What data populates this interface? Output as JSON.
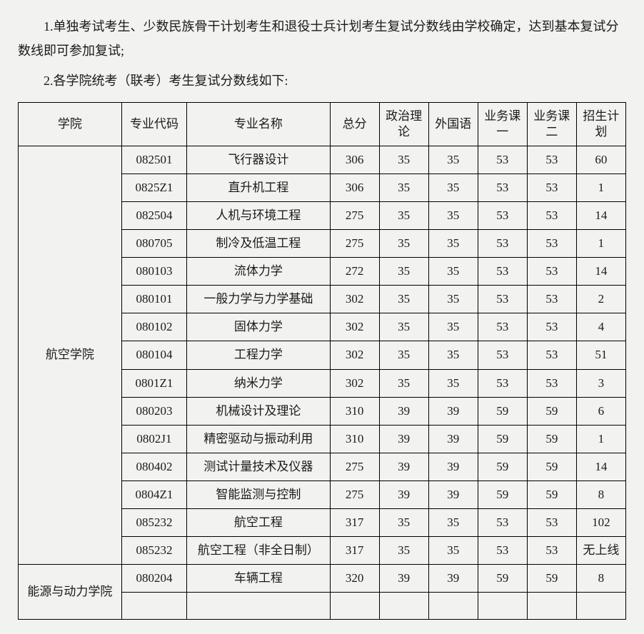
{
  "paragraphs": {
    "p1": "1.单独考试考生、少数民族骨干计划考生和退役士兵计划考生复试分数线由学校确定，达到基本复试分数线即可参加复试;",
    "p2": "2.各学院统考（联考）考生复试分数线如下:"
  },
  "table": {
    "headers": {
      "college": "学院",
      "code": "专业代码",
      "name": "专业名称",
      "total": "总分",
      "politics": "政治理论",
      "foreign": "外国语",
      "biz1": "业务课一",
      "biz2": "业务课二",
      "plan": "招生计划"
    },
    "college1": {
      "name": "航空学院",
      "rows": [
        {
          "code": "082501",
          "name": "飞行器设计",
          "total": "306",
          "politics": "35",
          "foreign": "35",
          "biz1": "53",
          "biz2": "53",
          "plan": "60"
        },
        {
          "code": "0825Z1",
          "name": "直升机工程",
          "total": "306",
          "politics": "35",
          "foreign": "35",
          "biz1": "53",
          "biz2": "53",
          "plan": "1"
        },
        {
          "code": "082504",
          "name": "人机与环境工程",
          "total": "275",
          "politics": "35",
          "foreign": "35",
          "biz1": "53",
          "biz2": "53",
          "plan": "14"
        },
        {
          "code": "080705",
          "name": "制冷及低温工程",
          "total": "275",
          "politics": "35",
          "foreign": "35",
          "biz1": "53",
          "biz2": "53",
          "plan": "1"
        },
        {
          "code": "080103",
          "name": "流体力学",
          "total": "272",
          "politics": "35",
          "foreign": "35",
          "biz1": "53",
          "biz2": "53",
          "plan": "14"
        },
        {
          "code": "080101",
          "name": "一般力学与力学基础",
          "total": "302",
          "politics": "35",
          "foreign": "35",
          "biz1": "53",
          "biz2": "53",
          "plan": "2"
        },
        {
          "code": "080102",
          "name": "固体力学",
          "total": "302",
          "politics": "35",
          "foreign": "35",
          "biz1": "53",
          "biz2": "53",
          "plan": "4"
        },
        {
          "code": "080104",
          "name": "工程力学",
          "total": "302",
          "politics": "35",
          "foreign": "35",
          "biz1": "53",
          "biz2": "53",
          "plan": "51"
        },
        {
          "code": "0801Z1",
          "name": "纳米力学",
          "total": "302",
          "politics": "35",
          "foreign": "35",
          "biz1": "53",
          "biz2": "53",
          "plan": "3"
        },
        {
          "code": "080203",
          "name": "机械设计及理论",
          "total": "310",
          "politics": "39",
          "foreign": "39",
          "biz1": "59",
          "biz2": "59",
          "plan": "6"
        },
        {
          "code": "0802J1",
          "name": "精密驱动与振动利用",
          "total": "310",
          "politics": "39",
          "foreign": "39",
          "biz1": "59",
          "biz2": "59",
          "plan": "1"
        },
        {
          "code": "080402",
          "name": "测试计量技术及仪器",
          "total": "275",
          "politics": "39",
          "foreign": "39",
          "biz1": "59",
          "biz2": "59",
          "plan": "14"
        },
        {
          "code": "0804Z1",
          "name": "智能监测与控制",
          "total": "275",
          "politics": "39",
          "foreign": "39",
          "biz1": "59",
          "biz2": "59",
          "plan": "8"
        },
        {
          "code": "085232",
          "name": "航空工程",
          "total": "317",
          "politics": "35",
          "foreign": "35",
          "biz1": "53",
          "biz2": "53",
          "plan": "102"
        },
        {
          "code": "085232",
          "name": "航空工程（非全日制）",
          "total": "317",
          "politics": "35",
          "foreign": "35",
          "biz1": "53",
          "biz2": "53",
          "plan": "无上线"
        }
      ]
    },
    "college2": {
      "name": "能源与动力学院",
      "rows": [
        {
          "code": "080204",
          "name": "车辆工程",
          "total": "320",
          "politics": "39",
          "foreign": "39",
          "biz1": "59",
          "biz2": "59",
          "plan": "8"
        },
        {
          "code": "",
          "name": "",
          "total": "",
          "politics": "",
          "foreign": "",
          "biz1": "",
          "biz2": "",
          "plan": ""
        }
      ]
    }
  }
}
